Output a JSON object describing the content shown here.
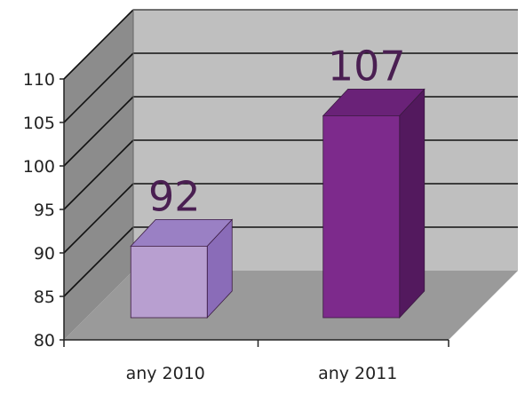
{
  "chart_data": {
    "type": "bar",
    "categories": [
      "any 2010",
      "any 2011"
    ],
    "values": [
      92,
      107
    ],
    "data_labels": [
      "92",
      "107"
    ],
    "ylim": [
      80,
      110
    ],
    "yticks": [
      80,
      85,
      90,
      95,
      100,
      105,
      110
    ],
    "ytick_labels": [
      "80",
      "85",
      "90",
      "95",
      "100",
      "105",
      "110"
    ],
    "grid": true,
    "legend": "none",
    "three_d": true,
    "title": "",
    "xlabel": "",
    "ylabel": ""
  },
  "colors": {
    "back_wall": "#bfbfbf",
    "side_wall": "#8c8c8c",
    "floor": "#9a9a9a",
    "grid_line": "#111111",
    "bar_2010_front": "#b89fd0",
    "bar_2010_side": "#8a6cb8",
    "bar_2010_top": "#9a80c4",
    "bar_2011_front": "#7d2a8c",
    "bar_2011_side": "#53195e",
    "bar_2011_top": "#6a2278",
    "data_label": "#4a1f52"
  }
}
